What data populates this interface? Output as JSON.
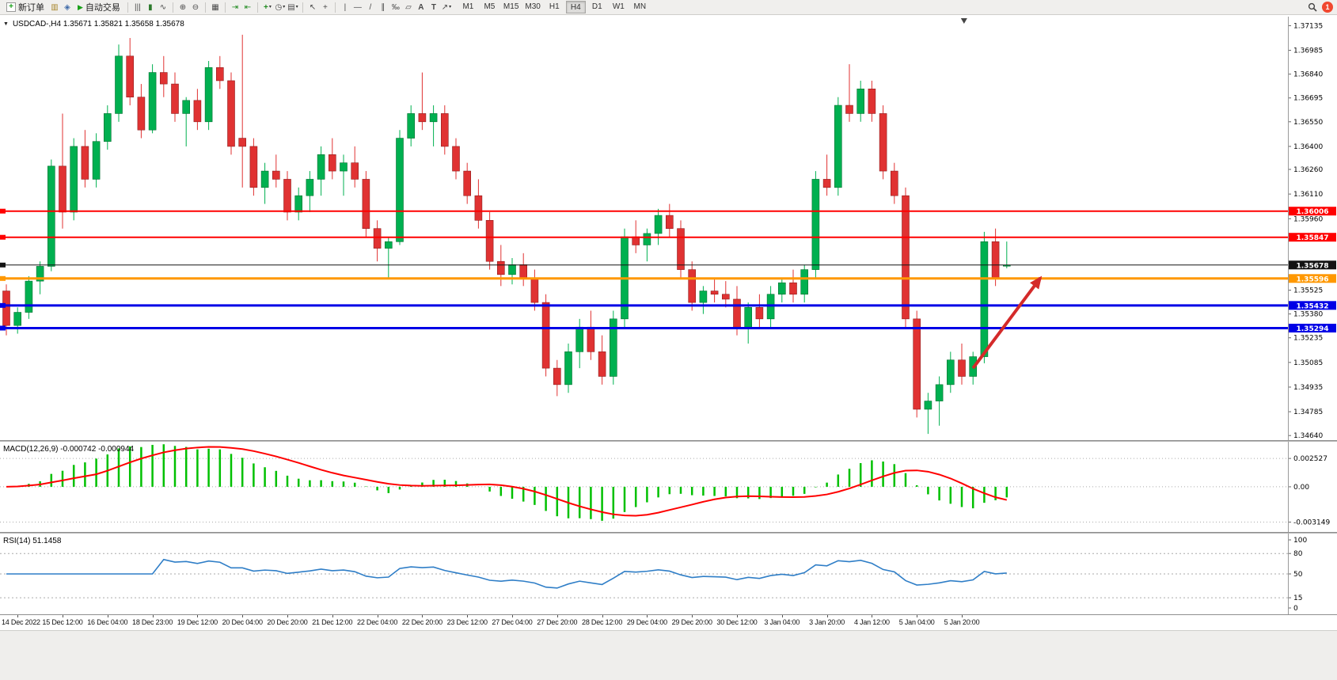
{
  "toolbar": {
    "new_order": {
      "label": "新订单",
      "icon_glyph": "+"
    },
    "autotrade": {
      "label": "自动交易",
      "icon_glyph": "▶"
    },
    "tool_groups": [
      {
        "items": [
          {
            "name": "market-watch-icon",
            "glyph": "▥",
            "color": "#a8862c"
          },
          {
            "name": "navigator-icon",
            "glyph": "◈",
            "color": "#3f6aa8"
          }
        ]
      },
      {
        "items": [
          {
            "name": "bar-chart-icon",
            "glyph": "|||"
          },
          {
            "name": "candlestick-icon",
            "glyph": "▮",
            "color": "#2c7a2c"
          },
          {
            "name": "line-chart-icon",
            "glyph": "∿"
          }
        ]
      },
      {
        "items": [
          {
            "name": "zoom-in-icon",
            "glyph": "⊕"
          },
          {
            "name": "zoom-out-icon",
            "glyph": "⊖"
          }
        ]
      },
      {
        "items": [
          {
            "name": "tile-windows-icon",
            "glyph": "▦"
          }
        ]
      },
      {
        "items": [
          {
            "name": "auto-scroll-icon",
            "glyph": "⇥",
            "color": "#1f8a1f"
          },
          {
            "name": "chart-shift-icon",
            "glyph": "⇤",
            "color": "#1f8a1f"
          }
        ]
      },
      {
        "items": [
          {
            "name": "indicators-icon",
            "glyph": "+",
            "color": "#1f8a1f",
            "bold": true,
            "caret": true
          },
          {
            "name": "periods-icon",
            "glyph": "◷",
            "caret": true
          },
          {
            "name": "templates-icon",
            "glyph": "▤",
            "caret": true
          }
        ]
      },
      {
        "items": [
          {
            "name": "cursor-icon",
            "glyph": "↖"
          },
          {
            "name": "crosshair-icon",
            "glyph": "+"
          }
        ]
      },
      {
        "items": [
          {
            "name": "vertical-line-icon",
            "glyph": "|"
          },
          {
            "name": "horizontal-line-icon",
            "glyph": "—"
          },
          {
            "name": "trendline-icon",
            "glyph": "/"
          },
          {
            "name": "channel-icon",
            "glyph": "∥"
          },
          {
            "name": "fibonacci-icon",
            "glyph": "‰"
          },
          {
            "name": "shapes-icon",
            "glyph": "▱"
          },
          {
            "name": "text-icon",
            "glyph": "A",
            "bold": true
          },
          {
            "name": "label-icon",
            "glyph": "T",
            "bold": true
          },
          {
            "name": "arrows-icon",
            "glyph": "↗",
            "caret": true
          }
        ]
      }
    ],
    "timeframes": [
      "M1",
      "M5",
      "M15",
      "M30",
      "H1",
      "H4",
      "D1",
      "W1",
      "MN"
    ],
    "active_timeframe": "H4",
    "notification": {
      "count": "1",
      "color": "#F1482F"
    }
  },
  "chart": {
    "dropdown_glyph": "▼",
    "header": "USDCAD-,H4 1.35671 1.35821 1.35658 1.35678"
  },
  "chart_data": [
    {
      "type": "candlestick",
      "title": "USDCAD-,H4",
      "symbol": "USDCAD-",
      "timeframe": "H4",
      "current": {
        "open": 1.35671,
        "high": 1.35821,
        "low": 1.35658,
        "close": 1.35678
      },
      "up_color": "#00B050",
      "down_color": "#E03232",
      "y_range": [
        1.34612,
        1.3719
      ],
      "y_ticks": [
        1.37135,
        1.36985,
        1.3684,
        1.36695,
        1.3655,
        1.364,
        1.3626,
        1.3611,
        1.3596,
        1.35525,
        1.3538,
        1.35235,
        1.35085,
        1.34935,
        1.34785,
        1.3464
      ],
      "x_labels": [
        "14 Dec 2022",
        "15 Dec 12:00",
        "16 Dec 04:00",
        "18 Dec 23:00",
        "19 Dec 12:00",
        "20 Dec 04:00",
        "20 Dec 20:00",
        "21 Dec 12:00",
        "22 Dec 04:00",
        "22 Dec 20:00",
        "23 Dec 12:00",
        "27 Dec 04:00",
        "27 Dec 20:00",
        "28 Dec 12:00",
        "29 Dec 04:00",
        "29 Dec 20:00",
        "30 Dec 12:00",
        "3 Jan 04:00",
        "3 Jan 20:00",
        "4 Jan 12:00",
        "5 Jan 04:00",
        "5 Jan 20:00"
      ],
      "x_label_start_index": 1,
      "x_label_step": 4,
      "hlines": [
        {
          "price": 1.36006,
          "color": "#FF0000",
          "width": 2,
          "badge": "1.36006"
        },
        {
          "price": 1.35847,
          "color": "#FF0000",
          "width": 2,
          "badge": "1.35847"
        },
        {
          "price": 1.35678,
          "color": "#141414",
          "width": 1,
          "badge": "1.35678"
        },
        {
          "price": 1.35596,
          "color": "#FF9800",
          "width": 3,
          "badge": "1.35596"
        },
        {
          "price": 1.35432,
          "color": "#0000E6",
          "width": 3,
          "badge": "1.35432"
        },
        {
          "price": 1.35294,
          "color": "#0000E6",
          "width": 3,
          "badge": "1.35294"
        }
      ],
      "arrow": {
        "from": {
          "index": 86.0,
          "price": 1.3505
        },
        "to": {
          "index": 92.0,
          "price": 1.356
        },
        "color": "#D42A2A",
        "width": 4
      },
      "shift_marker_index": 85.2,
      "candles": [
        [
          1.3552,
          1.3556,
          1.3525,
          1.3531
        ],
        [
          1.3531,
          1.3542,
          1.3526,
          1.3539
        ],
        [
          1.3539,
          1.3561,
          1.3535,
          1.3558
        ],
        [
          1.3558,
          1.357,
          1.355,
          1.3567
        ],
        [
          1.3567,
          1.3632,
          1.3564,
          1.3628
        ],
        [
          1.3628,
          1.366,
          1.359,
          1.36
        ],
        [
          1.36,
          1.3645,
          1.3595,
          1.364
        ],
        [
          1.364,
          1.365,
          1.3615,
          1.362
        ],
        [
          1.362,
          1.3648,
          1.3615,
          1.3643
        ],
        [
          1.3643,
          1.3665,
          1.3638,
          1.366
        ],
        [
          1.366,
          1.3702,
          1.3655,
          1.3695
        ],
        [
          1.3695,
          1.3706,
          1.3665,
          1.367
        ],
        [
          1.367,
          1.3678,
          1.3645,
          1.365
        ],
        [
          1.365,
          1.369,
          1.3648,
          1.3685
        ],
        [
          1.3685,
          1.3695,
          1.367,
          1.3678
        ],
        [
          1.3678,
          1.3685,
          1.3655,
          1.366
        ],
        [
          1.366,
          1.367,
          1.364,
          1.3668
        ],
        [
          1.3668,
          1.3675,
          1.365,
          1.3655
        ],
        [
          1.3655,
          1.3692,
          1.365,
          1.3688
        ],
        [
          1.3688,
          1.3695,
          1.3675,
          1.368
        ],
        [
          1.368,
          1.3685,
          1.3635,
          1.364
        ],
        [
          1.3645,
          1.3708,
          1.3615,
          1.364
        ],
        [
          1.364,
          1.3645,
          1.361,
          1.3615
        ],
        [
          1.3615,
          1.363,
          1.3605,
          1.3625
        ],
        [
          1.3625,
          1.3635,
          1.3615,
          1.362
        ],
        [
          1.362,
          1.3625,
          1.3595,
          1.36
        ],
        [
          1.36,
          1.3615,
          1.3595,
          1.361
        ],
        [
          1.361,
          1.3625,
          1.36,
          1.362
        ],
        [
          1.362,
          1.364,
          1.361,
          1.3635
        ],
        [
          1.3635,
          1.3645,
          1.362,
          1.3625
        ],
        [
          1.3625,
          1.3635,
          1.361,
          1.363
        ],
        [
          1.363,
          1.364,
          1.3615,
          1.362
        ],
        [
          1.362,
          1.3625,
          1.3585,
          1.359
        ],
        [
          1.359,
          1.3595,
          1.357,
          1.3578
        ],
        [
          1.3578,
          1.3585,
          1.356,
          1.3582
        ],
        [
          1.3582,
          1.365,
          1.358,
          1.3645
        ],
        [
          1.3645,
          1.3665,
          1.364,
          1.366
        ],
        [
          1.366,
          1.3685,
          1.365,
          1.3655
        ],
        [
          1.3655,
          1.3665,
          1.364,
          1.366
        ],
        [
          1.366,
          1.3665,
          1.3635,
          1.364
        ],
        [
          1.364,
          1.3645,
          1.362,
          1.3625
        ],
        [
          1.3625,
          1.363,
          1.3605,
          1.361
        ],
        [
          1.361,
          1.362,
          1.359,
          1.3595
        ],
        [
          1.3595,
          1.36,
          1.3565,
          1.357
        ],
        [
          1.357,
          1.358,
          1.3555,
          1.3562
        ],
        [
          1.3562,
          1.3572,
          1.3556,
          1.3568
        ],
        [
          1.3568,
          1.3575,
          1.3555,
          1.356
        ],
        [
          1.356,
          1.3565,
          1.354,
          1.3545
        ],
        [
          1.3545,
          1.355,
          1.35,
          1.3505
        ],
        [
          1.3505,
          1.351,
          1.3488,
          1.3495
        ],
        [
          1.3495,
          1.352,
          1.349,
          1.3515
        ],
        [
          1.3515,
          1.3535,
          1.3505,
          1.353
        ],
        [
          1.353,
          1.354,
          1.351,
          1.3515
        ],
        [
          1.3515,
          1.3525,
          1.3495,
          1.35
        ],
        [
          1.35,
          1.354,
          1.3495,
          1.3535
        ],
        [
          1.3535,
          1.359,
          1.353,
          1.3585
        ],
        [
          1.3585,
          1.3595,
          1.3575,
          1.358
        ],
        [
          1.358,
          1.359,
          1.357,
          1.3587
        ],
        [
          1.3587,
          1.3602,
          1.358,
          1.3598
        ],
        [
          1.3598,
          1.3605,
          1.3585,
          1.359
        ],
        [
          1.359,
          1.3595,
          1.356,
          1.3565
        ],
        [
          1.3565,
          1.357,
          1.354,
          1.3545
        ],
        [
          1.3545,
          1.3555,
          1.3538,
          1.3552
        ],
        [
          1.3552,
          1.356,
          1.3545,
          1.355
        ],
        [
          1.355,
          1.3558,
          1.3542,
          1.3547
        ],
        [
          1.3547,
          1.3555,
          1.3525,
          1.353
        ],
        [
          1.353,
          1.3545,
          1.352,
          1.3542
        ],
        [
          1.3542,
          1.355,
          1.353,
          1.3535
        ],
        [
          1.3535,
          1.3555,
          1.353,
          1.355
        ],
        [
          1.355,
          1.356,
          1.3545,
          1.3557
        ],
        [
          1.3557,
          1.3565,
          1.3545,
          1.355
        ],
        [
          1.355,
          1.3568,
          1.3545,
          1.3565
        ],
        [
          1.3565,
          1.3625,
          1.356,
          1.362
        ],
        [
          1.362,
          1.3635,
          1.361,
          1.3615
        ],
        [
          1.3615,
          1.367,
          1.361,
          1.3665
        ],
        [
          1.3665,
          1.369,
          1.3655,
          1.366
        ],
        [
          1.366,
          1.368,
          1.3655,
          1.3675
        ],
        [
          1.3675,
          1.368,
          1.3655,
          1.366
        ],
        [
          1.366,
          1.3665,
          1.362,
          1.3625
        ],
        [
          1.3625,
          1.363,
          1.3605,
          1.361
        ],
        [
          1.361,
          1.3615,
          1.353,
          1.3535
        ],
        [
          1.3535,
          1.354,
          1.3475,
          1.348
        ],
        [
          1.348,
          1.349,
          1.3465,
          1.3485
        ],
        [
          1.3485,
          1.35,
          1.347,
          1.3495
        ],
        [
          1.3495,
          1.3515,
          1.349,
          1.351
        ],
        [
          1.351,
          1.352,
          1.3495,
          1.35
        ],
        [
          1.35,
          1.3515,
          1.3495,
          1.3512
        ],
        [
          1.3512,
          1.3588,
          1.3508,
          1.3582
        ],
        [
          1.3582,
          1.359,
          1.3555,
          1.356
        ],
        [
          1.35671,
          1.35821,
          1.35658,
          1.35678
        ]
      ]
    },
    {
      "type": "macd",
      "label": "MACD(12,26,9) -0.000742 -0.000944",
      "params": [
        12,
        26,
        9
      ],
      "current_values": [
        -0.000742,
        -0.000944
      ],
      "y_ticks": [
        {
          "value": 0.002527,
          "label": "0.002527"
        },
        {
          "value": 0,
          "label": "0.00"
        },
        {
          "value": -0.003149,
          "label": "-0.003149"
        }
      ],
      "histogram_color": "#00C000",
      "signal_color": "#FF0000"
    },
    {
      "type": "rsi",
      "label": "RSI(14) 51.1458",
      "period": 14,
      "current_value": 51.1458,
      "y_ticks": [
        100,
        80,
        50,
        15,
        0
      ],
      "levels": [
        80,
        50,
        15
      ],
      "line_color": "#2F7EC7"
    }
  ]
}
